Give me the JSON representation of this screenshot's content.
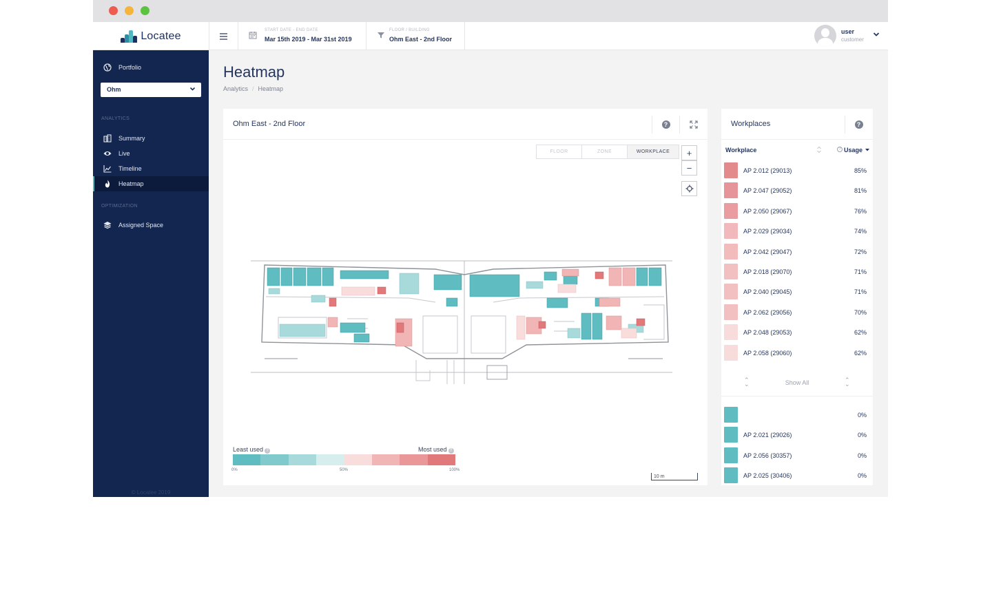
{
  "app": {
    "name": "Locatee",
    "footer": "© Locatee 2019"
  },
  "header": {
    "date_label": "START DATE - END DATE",
    "date_value": "Mar 15th 2019 - Mar 31st 2019",
    "floor_label": "FLOOR / BUILDING",
    "floor_value": "Ohm East - 2nd Floor",
    "user_name": "user",
    "user_role": "customer"
  },
  "sidebar": {
    "portfolio": "Portfolio",
    "building_select": "Ohm",
    "analytics_section": "ANALYTICS",
    "items": [
      {
        "label": "Summary",
        "icon": "building-icon"
      },
      {
        "label": "Live",
        "icon": "eye-icon"
      },
      {
        "label": "Timeline",
        "icon": "chart-line-icon"
      },
      {
        "label": "Heatmap",
        "icon": "flame-icon",
        "active": true
      }
    ],
    "optimization_section": "OPTIMIZATION",
    "assigned_space": "Assigned Space"
  },
  "page": {
    "title": "Heatmap",
    "breadcrumb": [
      "Analytics",
      "Heatmap"
    ]
  },
  "map": {
    "title": "Ohm East - 2nd Floor",
    "views": [
      "FLOOR",
      "ZONE",
      "WORKPLACE"
    ],
    "selected_view": "WORKPLACE",
    "legend": {
      "least": "Least used",
      "most": "Most used",
      "ticks": [
        "0%",
        "50%",
        "100%"
      ],
      "colors": [
        "#5fbcc0",
        "#80cacd",
        "#a8dadb",
        "#d6eeee",
        "#f9dddd",
        "#f1b5b6",
        "#ea9799",
        "#e1797b"
      ]
    },
    "scale_label": "10 m"
  },
  "workplaces": {
    "title": "Workplaces",
    "col_workplace": "Workplace",
    "col_usage": "Usage",
    "show_all": "Show All",
    "top": [
      {
        "name": "AP 2.012 (29013)",
        "usage": "85%",
        "color": "#e38a8c"
      },
      {
        "name": "AP 2.047 (29052)",
        "usage": "81%",
        "color": "#e6939a"
      },
      {
        "name": "AP 2.050 (29067)",
        "usage": "76%",
        "color": "#ea9da0"
      },
      {
        "name": "AP 2.029 (29034)",
        "usage": "74%",
        "color": "#f1b9bb"
      },
      {
        "name": "AP 2.042 (29047)",
        "usage": "72%",
        "color": "#f2bcbd"
      },
      {
        "name": "AP 2.018 (29070)",
        "usage": "71%",
        "color": "#f3c0c1"
      },
      {
        "name": "AP 2.040 (29045)",
        "usage": "71%",
        "color": "#f3c0c1"
      },
      {
        "name": "AP 2.062 (29056)",
        "usage": "70%",
        "color": "#f2c0c1"
      },
      {
        "name": "AP 2.048 (29053)",
        "usage": "62%",
        "color": "#f8dcdc"
      },
      {
        "name": "AP 2.058 (29060)",
        "usage": "62%",
        "color": "#f8dcdc"
      }
    ],
    "bottom": [
      {
        "name": "",
        "usage": "0%",
        "color": "#5fbcc0"
      },
      {
        "name": "AP 2.021 (29026)",
        "usage": "0%",
        "color": "#5fbcc0"
      },
      {
        "name": "AP 2.056 (30357)",
        "usage": "0%",
        "color": "#5fbcc0"
      },
      {
        "name": "AP 2.025 (30406)",
        "usage": "0%",
        "color": "#5fbcc0"
      }
    ]
  }
}
